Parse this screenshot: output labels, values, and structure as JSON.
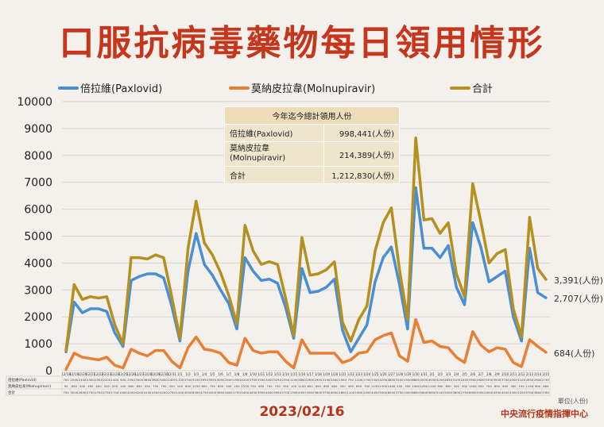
{
  "title": "口服抗病毒藥物每日領用情形",
  "date": "2023/02/16",
  "source": "中央流行疫情指揮中心",
  "unit_note": "單位(人份)",
  "summary": {
    "header": "今年迄今總計領用人份",
    "rows": [
      {
        "label": "倍拉維(Paxlovid)",
        "value": "998,441(人份)"
      },
      {
        "label": "莫納皮拉韋\n(Molnupiravir)",
        "value": "214,389(人份)"
      },
      {
        "label": "合計",
        "value": "1,212,830(人份)"
      }
    ]
  },
  "end_labels": [
    "3,391(人份)",
    "2,707(人份)",
    "684(人份)"
  ],
  "table_row_labels": [
    "倍拉維(Paxlovid)",
    "莫納皮拉韋(Molnupiravir)",
    "合計"
  ],
  "chart_data": {
    "type": "line",
    "ylim": [
      0,
      10000
    ],
    "yticks": [
      0,
      1000,
      2000,
      3000,
      4000,
      5000,
      6000,
      7000,
      8000,
      9000,
      10000
    ],
    "grid": true,
    "legend": "top",
    "x": [
      "12/18",
      "12/19",
      "12/20",
      "12/21",
      "12/22",
      "12/23",
      "12/24",
      "12/25",
      "12/26",
      "12/27",
      "12/28",
      "12/29",
      "12/30",
      "12/31",
      "1/1",
      "1/2",
      "1/3",
      "1/4",
      "1/5",
      "1/6",
      "1/7",
      "1/8",
      "1/9",
      "1/10",
      "1/11",
      "1/12",
      "1/13",
      "1/14",
      "1/15",
      "1/16",
      "1/17",
      "1/18",
      "1/19",
      "1/20",
      "1/21",
      "1/22",
      "1/23",
      "1/24",
      "1/25",
      "1/26",
      "1/27",
      "1/28",
      "1/29",
      "1/30",
      "1/31",
      "2/1",
      "2/2",
      "2/3",
      "2/4",
      "2/5",
      "2/6",
      "2/7",
      "2/8",
      "2/9",
      "2/10",
      "2/11",
      "2/12",
      "2/13",
      "2/14",
      "2/15"
    ],
    "series": [
      {
        "name": "倍拉維(Paxlovid)",
        "color": "#4a8fd4",
        "values": [
          700,
          2550,
          2150,
          2300,
          2300,
          2200,
          1400,
          900,
          3350,
          3500,
          3600,
          3600,
          3450,
          2400,
          1100,
          3700,
          5100,
          3950,
          3550,
          3000,
          2500,
          1550,
          4200,
          3700,
          3350,
          3400,
          3250,
          2350,
          1200,
          3800,
          2900,
          2950,
          3100,
          3400,
          1500,
          700,
          1200,
          1700,
          3300,
          4200,
          4600,
          3200,
          1550,
          6800,
          4550,
          4550,
          4200,
          4650,
          3100,
          2450,
          5500,
          4600,
          3300,
          3500,
          3700,
          2000,
          1100,
          4550,
          2900,
          2707
        ]
      },
      {
        "name": "莫納皮拉韋(Molnupiravir)",
        "color": "#e87f35",
        "values": [
          50,
          650,
          500,
          450,
          400,
          500,
          200,
          100,
          800,
          650,
          550,
          750,
          750,
          350,
          100,
          850,
          1250,
          800,
          750,
          650,
          300,
          200,
          1200,
          750,
          650,
          700,
          700,
          350,
          100,
          1150,
          650,
          650,
          650,
          650,
          300,
          400,
          650,
          700,
          1150,
          1300,
          1400,
          550,
          350,
          1900,
          1050,
          1100,
          900,
          850,
          500,
          300,
          1450,
          950,
          700,
          850,
          800,
          300,
          150,
          1150,
          900,
          684
        ]
      },
      {
        "name": "合計",
        "color": "#b5901f",
        "values": [
          750,
          3200,
          2650,
          2750,
          2700,
          2750,
          1700,
          1000,
          4200,
          4200,
          4150,
          4300,
          4200,
          2750,
          1200,
          4550,
          6300,
          4750,
          4300,
          3650,
          2800,
          1750,
          5400,
          4450,
          3950,
          4050,
          3950,
          2700,
          1300,
          4950,
          3550,
          3600,
          3750,
          4050,
          1800,
          1100,
          1900,
          2400,
          4450,
          5500,
          6050,
          3750,
          1900,
          8650,
          5600,
          5650,
          5100,
          5500,
          3600,
          2750,
          6950,
          5550,
          4000,
          4350,
          4500,
          2300,
          1250,
          5700,
          3800,
          3391
        ]
      }
    ]
  }
}
